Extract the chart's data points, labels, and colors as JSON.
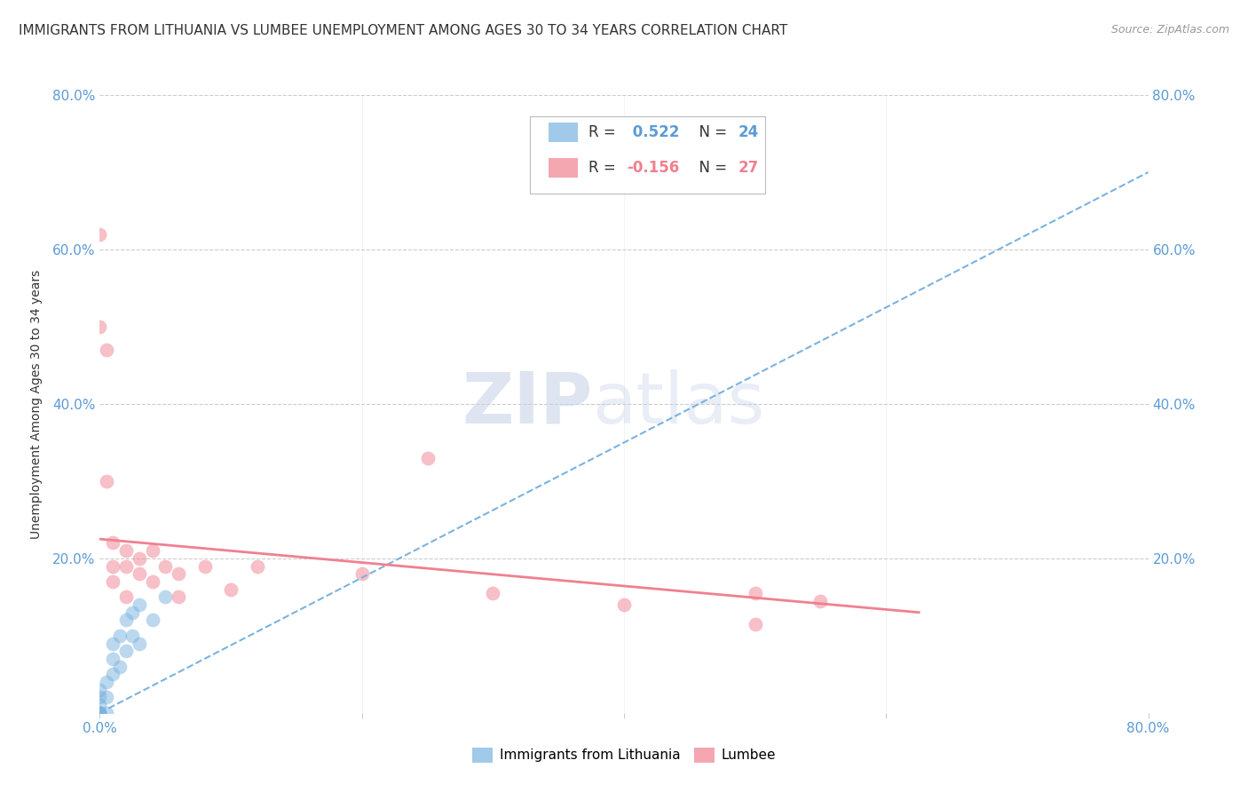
{
  "title": "IMMIGRANTS FROM LITHUANIA VS LUMBEE UNEMPLOYMENT AMONG AGES 30 TO 34 YEARS CORRELATION CHART",
  "source": "Source: ZipAtlas.com",
  "ylabel": "Unemployment Among Ages 30 to 34 years",
  "xlim": [
    0,
    0.8
  ],
  "ylim": [
    0,
    0.8
  ],
  "xticks": [
    0.0,
    0.2,
    0.4,
    0.6,
    0.8
  ],
  "yticks": [
    0.0,
    0.2,
    0.4,
    0.6,
    0.8
  ],
  "xticklabels": [
    "0.0%",
    "",
    "",
    "",
    "80.0%"
  ],
  "yticklabels_left": [
    "",
    "20.0%",
    "40.0%",
    "60.0%",
    "80.0%"
  ],
  "yticklabels_right": [
    "",
    "20.0%",
    "40.0%",
    "60.0%",
    "80.0%"
  ],
  "watermark_zip": "ZIP",
  "watermark_atlas": "atlas",
  "legend_entries": [
    {
      "label": "Immigrants from Lithuania",
      "color": "#aec6e8",
      "R": 0.522,
      "N": 24
    },
    {
      "label": "Lumbee",
      "color": "#f4b8c1",
      "R": -0.156,
      "N": 27
    }
  ],
  "lithuania_points": [
    [
      0.0,
      0.0
    ],
    [
      0.0,
      0.0
    ],
    [
      0.0,
      0.0
    ],
    [
      0.0,
      0.0
    ],
    [
      0.0,
      0.0
    ],
    [
      0.0,
      0.01
    ],
    [
      0.0,
      0.02
    ],
    [
      0.0,
      0.03
    ],
    [
      0.005,
      0.0
    ],
    [
      0.005,
      0.02
    ],
    [
      0.005,
      0.04
    ],
    [
      0.01,
      0.05
    ],
    [
      0.01,
      0.07
    ],
    [
      0.01,
      0.09
    ],
    [
      0.015,
      0.06
    ],
    [
      0.015,
      0.1
    ],
    [
      0.02,
      0.08
    ],
    [
      0.02,
      0.12
    ],
    [
      0.025,
      0.1
    ],
    [
      0.025,
      0.13
    ],
    [
      0.03,
      0.09
    ],
    [
      0.03,
      0.14
    ],
    [
      0.04,
      0.12
    ],
    [
      0.05,
      0.15
    ]
  ],
  "lumbee_points": [
    [
      0.0,
      0.62
    ],
    [
      0.0,
      0.5
    ],
    [
      0.005,
      0.47
    ],
    [
      0.005,
      0.3
    ],
    [
      0.01,
      0.22
    ],
    [
      0.01,
      0.19
    ],
    [
      0.01,
      0.17
    ],
    [
      0.02,
      0.21
    ],
    [
      0.02,
      0.19
    ],
    [
      0.02,
      0.15
    ],
    [
      0.03,
      0.2
    ],
    [
      0.03,
      0.18
    ],
    [
      0.04,
      0.21
    ],
    [
      0.04,
      0.17
    ],
    [
      0.05,
      0.19
    ],
    [
      0.06,
      0.18
    ],
    [
      0.06,
      0.15
    ],
    [
      0.08,
      0.19
    ],
    [
      0.1,
      0.16
    ],
    [
      0.12,
      0.19
    ],
    [
      0.2,
      0.18
    ],
    [
      0.25,
      0.33
    ],
    [
      0.3,
      0.155
    ],
    [
      0.4,
      0.14
    ],
    [
      0.5,
      0.155
    ],
    [
      0.5,
      0.115
    ],
    [
      0.55,
      0.145
    ]
  ],
  "lithuania_trendline": {
    "x_start": 0.0,
    "x_end": 0.8,
    "y_start": 0.0,
    "y_end": 0.7
  },
  "lumbee_trendline": {
    "x_start": 0.0,
    "x_end": 0.625,
    "y_start": 0.225,
    "y_end": 0.13
  },
  "bg_color": "#ffffff",
  "grid_color": "#cccccc",
  "dot_size": 130,
  "dot_alpha": 0.5,
  "lithuania_dot_color": "#7ab3e0",
  "lumbee_dot_color": "#f08090",
  "lithuania_line_color": "#7ab3e0",
  "lumbee_line_color": "#f08090",
  "tick_color": "#5b9bd5",
  "title_fontsize": 11,
  "axis_label_fontsize": 10,
  "tick_fontsize": 11,
  "legend_fontsize": 12
}
